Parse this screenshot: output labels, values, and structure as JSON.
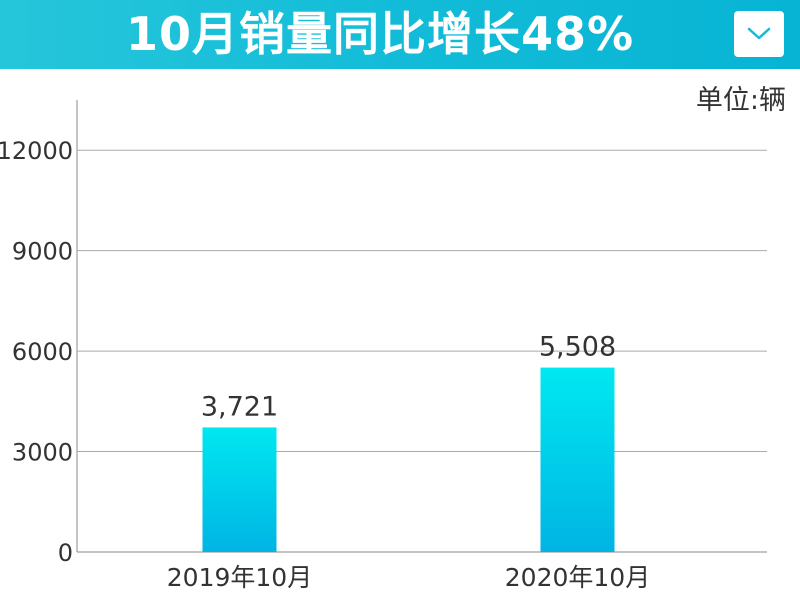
{
  "header": {
    "title": "10月销量同比增长48%",
    "dropdown_icon": "chevron-down-icon",
    "accent_color": "#12bcd8"
  },
  "chart_data": {
    "type": "bar",
    "title": "10月销量同比增长48%",
    "unit": "单位:辆",
    "categories": [
      "2019年10月",
      "2020年10月"
    ],
    "values": [
      3721,
      5508
    ],
    "value_labels": [
      "3,721",
      "5,508"
    ],
    "yticks": [
      0,
      3000,
      6000,
      9000,
      12000
    ],
    "ylim": [
      0,
      13500
    ],
    "grid": true,
    "bar_color_top": "#00e8f0",
    "bar_color_bottom": "#00b4e4"
  }
}
